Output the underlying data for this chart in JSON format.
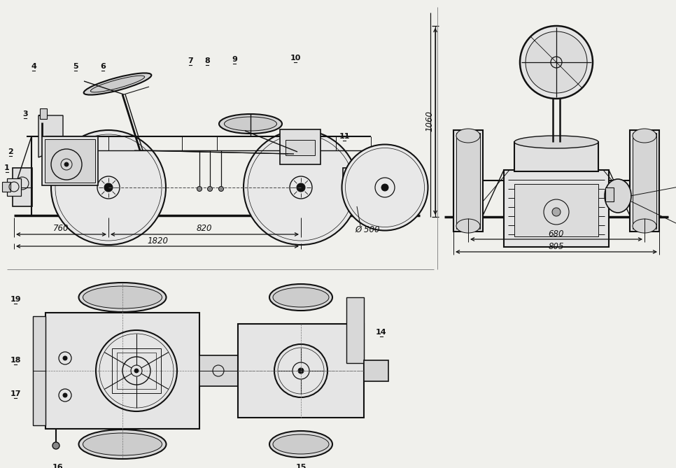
{
  "bg_color": "#f0f0ec",
  "line_color": "#111111",
  "lw_main": 1.2,
  "lw_thin": 0.7,
  "lw_ground": 2.5,
  "font_size": 8,
  "font_size_label": 8,
  "font_size_dim": 8.5
}
